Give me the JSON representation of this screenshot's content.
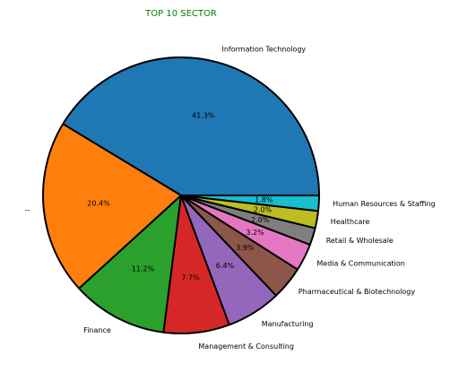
{
  "chart_data": {
    "type": "pie",
    "title": "TOP 10 SECTOR",
    "title_color": "#008000",
    "start_angle_deg": 0,
    "direction": "counterclockwise",
    "edge_color": "#000000",
    "slices": [
      {
        "label": "Information Technology",
        "value": 41.3,
        "pct_label": "41.3%",
        "color": "#1f77b4"
      },
      {
        "label": "--",
        "value": 20.4,
        "pct_label": "20.4%",
        "color": "#ff7f0e"
      },
      {
        "label": "Finance",
        "value": 11.2,
        "pct_label": "11.2%",
        "color": "#2ca02c"
      },
      {
        "label": "Management & Consulting",
        "value": 7.7,
        "pct_label": "7.7%",
        "color": "#d62728"
      },
      {
        "label": "Manufacturing",
        "value": 6.4,
        "pct_label": "6.4%",
        "color": "#9467bd"
      },
      {
        "label": "Pharmaceutical & Biotechnology",
        "value": 3.9,
        "pct_label": "3.9%",
        "color": "#8c564b"
      },
      {
        "label": "Media & Communication",
        "value": 3.2,
        "pct_label": "3.2%",
        "color": "#e377c2"
      },
      {
        "label": "Retail & Wholesale",
        "value": 2.0,
        "pct_label": "2.0%",
        "color": "#7f7f7f"
      },
      {
        "label": "Healthcare",
        "value": 2.0,
        "pct_label": "2.0%",
        "color": "#bcbd22"
      },
      {
        "label": "Human Resources & Staffing",
        "value": 1.8,
        "pct_label": "1.8%",
        "color": "#17becf"
      }
    ]
  }
}
